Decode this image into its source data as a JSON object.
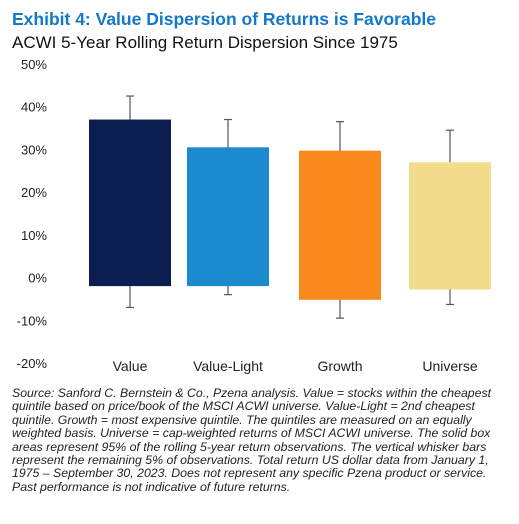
{
  "header": {
    "title": "Exhibit 4: Value Dispersion of Returns is Favorable",
    "subtitle": "ACWI 5-Year Rolling Return Dispersion Since 1975"
  },
  "chart_data": {
    "type": "box",
    "title": "ACWI 5-Year Rolling Return Dispersion Since 1975",
    "xlabel": "",
    "ylabel": "",
    "ylim": [
      -20,
      50
    ],
    "yticks": [
      "50%",
      "40%",
      "30%",
      "20%",
      "10%",
      "0%",
      "-10%",
      "-20%"
    ],
    "ytick_values": [
      50,
      40,
      30,
      20,
      10,
      0,
      -10,
      -20
    ],
    "grid": false,
    "categories": [
      "Value",
      "Value-Light",
      "Growth",
      "Universe"
    ],
    "series": [
      {
        "box_high": 37.0,
        "box_low": -2.0,
        "whisker_high": 42.5,
        "whisker_low": -7.0,
        "color": "#0a1f4f"
      },
      {
        "box_high": 30.5,
        "box_low": -2.0,
        "whisker_high": 37.0,
        "whisker_low": -4.0,
        "color": "#1b8ad0"
      },
      {
        "box_high": 29.7,
        "box_low": -5.2,
        "whisker_high": 36.5,
        "whisker_low": -9.5,
        "color": "#f7891d"
      },
      {
        "box_high": 27.0,
        "box_low": -2.8,
        "whisker_high": 34.5,
        "whisker_low": -6.3,
        "color": "#f4dc8f"
      }
    ]
  },
  "footnote": "Source: Sanford C. Bernstein & Co., Pzena analysis. Value = stocks within the cheapest quintile based on price/book of the MSCI ACWI universe. Value-Light = 2nd cheapest quintile. Growth = most expensive quintile. The quintiles are measured on an equally weighted basis. Universe = cap-weighted returns of MSCI ACWI universe. The solid box areas represent 95% of the rolling 5-year return observations. The vertical whisker bars represent the remaining 5% of observations. Total return US dollar data from January 1, 1975 – September 30, 2023. Does not represent any specific Pzena product or service. Past performance is not indicative of future returns."
}
